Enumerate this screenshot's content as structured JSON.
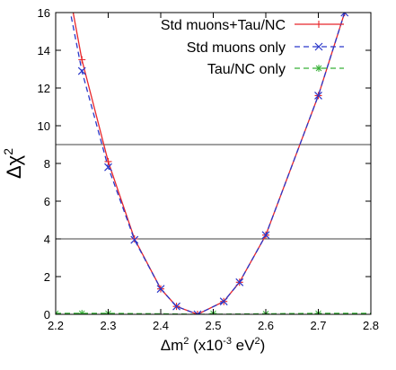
{
  "chart_data": {
    "type": "line",
    "xlabel_main": "Δm",
    "xlabel_sup": "2",
    "xlabel_rest": " (x10",
    "xlabel_exp": "-3",
    "xlabel_unit": " eV",
    "xlabel_unit_sup": "2",
    "xlabel_close": ")",
    "ylabel_main": "Δχ",
    "ylabel_sup": "2",
    "xlim": [
      2.2,
      2.8
    ],
    "ylim": [
      0,
      16
    ],
    "x_ticks": [
      2.2,
      2.3,
      2.4,
      2.5,
      2.6,
      2.7,
      2.8
    ],
    "x_tick_labels": [
      "2.2",
      "2.3",
      "2.4",
      "2.5",
      "2.6",
      "2.7",
      "2.8"
    ],
    "y_ticks": [
      0,
      2,
      4,
      6,
      8,
      10,
      12,
      14,
      16
    ],
    "y_tick_labels": [
      "0",
      "2",
      "4",
      "6",
      "8",
      "10",
      "12",
      "14",
      "16"
    ],
    "hlines": [
      4,
      9
    ],
    "legend_position": "top-right",
    "series": [
      {
        "name": "Std muons+Tau/NC",
        "color": "#e8262b",
        "style": "solid",
        "marker": "plus",
        "x": [
          2.2,
          2.25,
          2.3,
          2.35,
          2.4,
          2.43,
          2.47,
          2.52,
          2.55,
          2.6,
          2.7,
          2.75
        ],
        "y": [
          21.0,
          13.5,
          8.1,
          4.0,
          1.35,
          0.42,
          0.0,
          0.68,
          1.7,
          4.2,
          11.6,
          16.0
        ]
      },
      {
        "name": "Std muons only",
        "color": "#2a37c9",
        "style": "dashed",
        "marker": "x",
        "x": [
          2.2,
          2.25,
          2.3,
          2.35,
          2.4,
          2.43,
          2.47,
          2.52,
          2.55,
          2.6,
          2.7,
          2.75
        ],
        "y": [
          20.0,
          12.9,
          7.8,
          3.95,
          1.35,
          0.42,
          0.0,
          0.68,
          1.7,
          4.2,
          11.6,
          16.0
        ]
      },
      {
        "name": "Tau/NC only",
        "color": "#37b137",
        "style": "dashed",
        "marker": "star",
        "x": [
          2.2,
          2.25,
          2.3,
          2.35,
          2.4,
          2.43,
          2.47,
          2.52,
          2.55,
          2.6,
          2.7,
          2.8
        ],
        "y": [
          0.05,
          0.05,
          0.05,
          0.04,
          0.03,
          0.02,
          0.0,
          0.01,
          0.02,
          0.03,
          0.05,
          0.05
        ],
        "marker_x": [
          2.2,
          2.25,
          2.3,
          2.5,
          2.6,
          2.7
        ]
      }
    ]
  }
}
